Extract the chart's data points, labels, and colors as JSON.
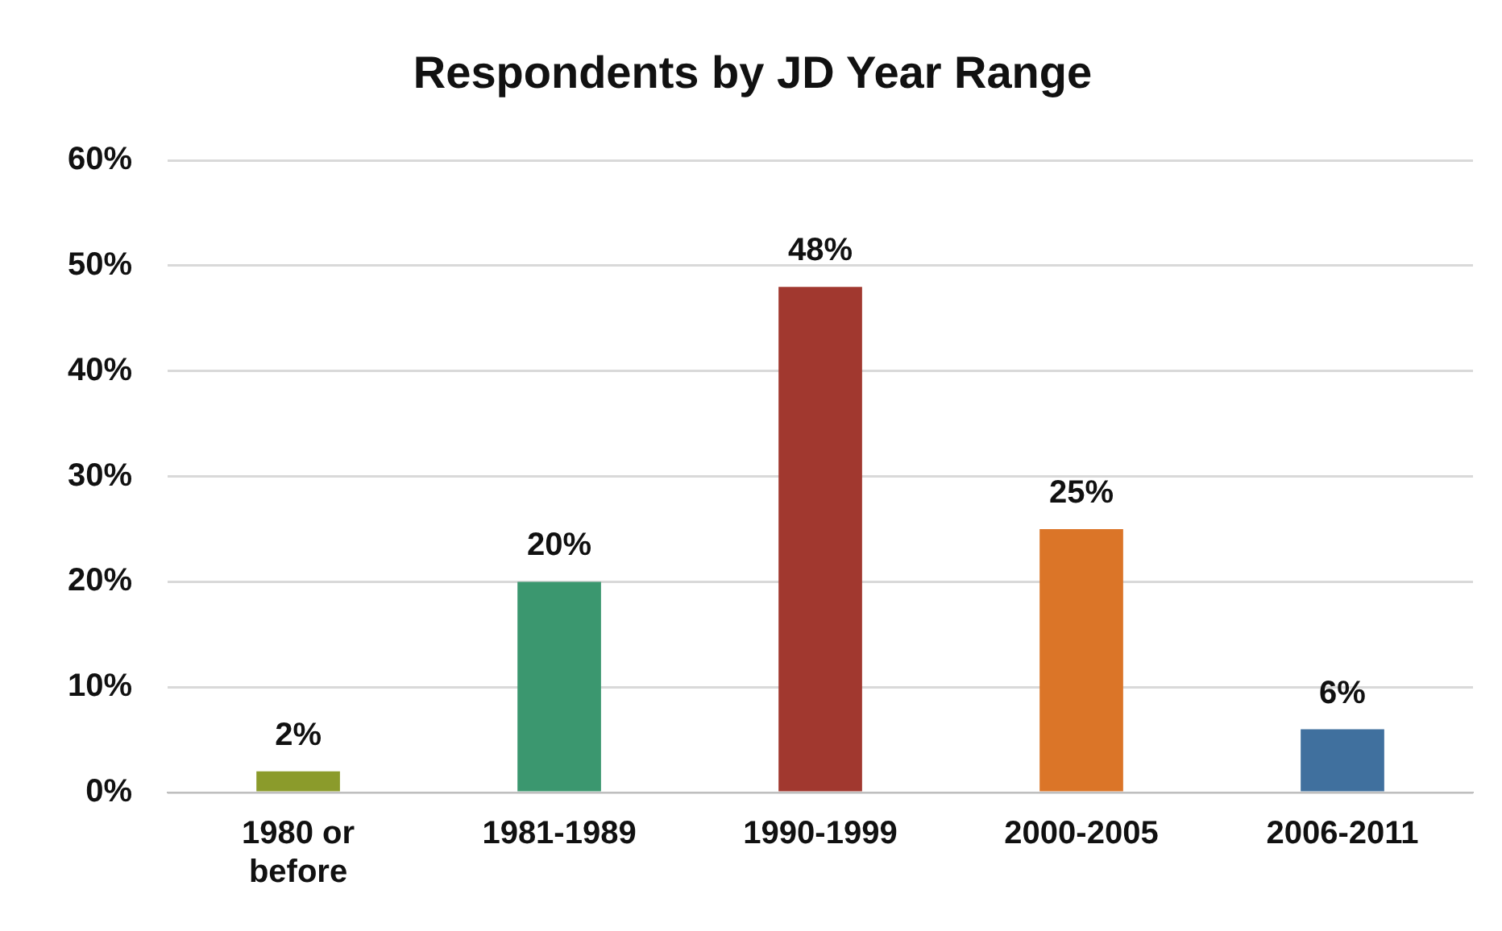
{
  "chart_data": {
    "type": "bar",
    "title": "Respondents by JD Year Range",
    "categories": [
      "1980 or before",
      "1981-1989",
      "1990-1999",
      "2000-2005",
      "2006-2011"
    ],
    "values": [
      2,
      20,
      48,
      25,
      6
    ],
    "colors": [
      "#8b9b2b",
      "#3b976f",
      "#a1382f",
      "#db7528",
      "#40709e"
    ],
    "value_labels": [
      "2%",
      "20%",
      "48%",
      "25%",
      "6%"
    ],
    "ylim": [
      0,
      60
    ],
    "yticks": [
      {
        "value": 0,
        "label": "0%"
      },
      {
        "value": 10,
        "label": "10%"
      },
      {
        "value": 20,
        "label": "20%"
      },
      {
        "value": 30,
        "label": "30%"
      },
      {
        "value": 40,
        "label": "40%"
      },
      {
        "value": 50,
        "label": "50%"
      },
      {
        "value": 60,
        "label": "60%"
      }
    ],
    "grid": "y",
    "legend": false
  }
}
